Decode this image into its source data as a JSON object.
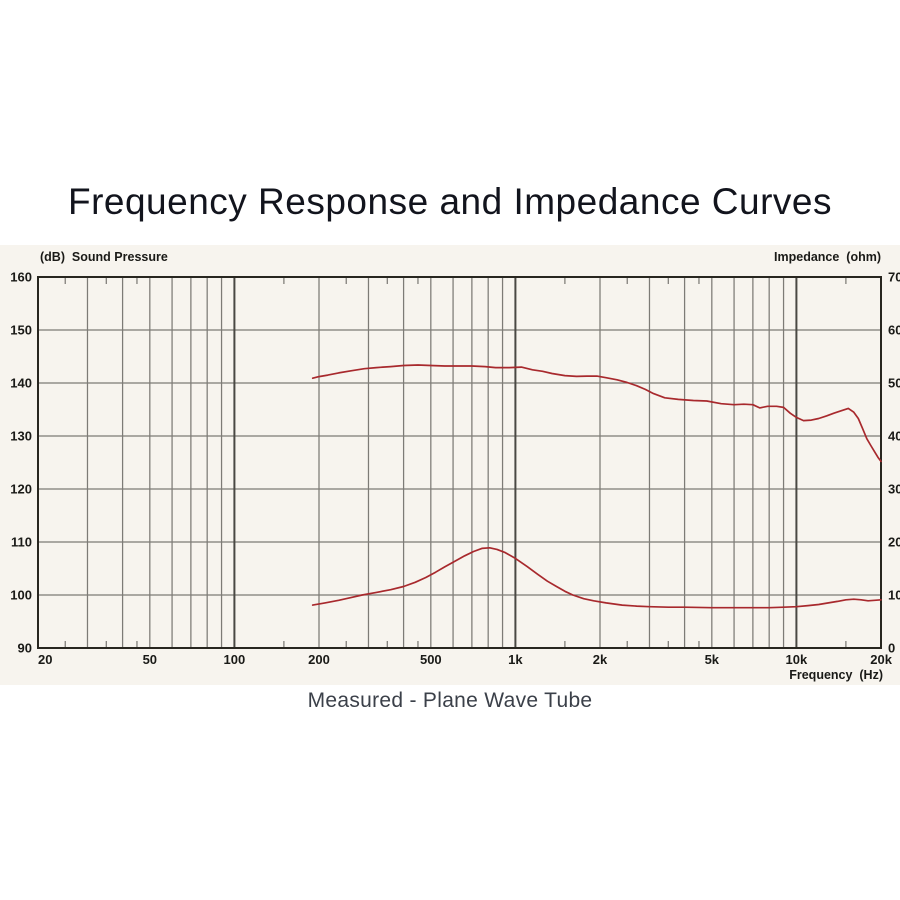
{
  "page": {
    "title": "Frequency Response and Impedance Curves",
    "caption": "Measured - Plane Wave Tube"
  },
  "chart_data": {
    "type": "line",
    "title": "Frequency Response and Impedance Curves",
    "subtitle": "Measured - Plane Wave Tube",
    "legend": "none",
    "grid": {
      "x_minor": [
        30,
        40,
        50,
        60,
        70,
        80,
        90,
        200,
        300,
        400,
        500,
        600,
        700,
        800,
        900,
        2000,
        3000,
        4000,
        5000,
        6000,
        7000,
        8000,
        9000
      ],
      "x_major": [
        100,
        1000,
        10000
      ],
      "x_edge_ticks": [
        25,
        35,
        45,
        150,
        250,
        350,
        450,
        1500,
        2500,
        3500,
        4500,
        15000
      ],
      "y_lines": [
        150,
        140,
        130,
        120,
        110,
        100
      ]
    },
    "x_axis": {
      "label": "Frequency  (Hz)",
      "scale": "log",
      "min": 20,
      "max": 20000,
      "ticks": [
        {
          "f": 20,
          "label": "20",
          "anchor": "start"
        },
        {
          "f": 50,
          "label": "50",
          "anchor": "middle"
        },
        {
          "f": 100,
          "label": "100",
          "anchor": "middle"
        },
        {
          "f": 200,
          "label": "200",
          "anchor": "middle"
        },
        {
          "f": 500,
          "label": "500",
          "anchor": "middle"
        },
        {
          "f": 1000,
          "label": "1k",
          "anchor": "middle"
        },
        {
          "f": 2000,
          "label": "2k",
          "anchor": "middle"
        },
        {
          "f": 5000,
          "label": "5k",
          "anchor": "middle"
        },
        {
          "f": 10000,
          "label": "10k",
          "anchor": "middle"
        },
        {
          "f": 20000,
          "label": "20k",
          "anchor": "end"
        }
      ]
    },
    "y_left": {
      "label": "(dB)  Sound Pressure",
      "min": 90,
      "max": 160,
      "step": 10,
      "ticks": [
        160,
        150,
        140,
        130,
        120,
        110,
        100,
        90
      ]
    },
    "y_right": {
      "label": "Impedance  (ohm)",
      "min": 0,
      "max": 70,
      "step": 10,
      "ticks": [
        70,
        60,
        50,
        40,
        30,
        20,
        10,
        0
      ]
    },
    "series": [
      {
        "name": "Sound Pressure",
        "unit": "dB",
        "axis": "left",
        "color": "#a8292d",
        "points": [
          [
            190,
            140.9
          ],
          [
            200,
            141.2
          ],
          [
            215,
            141.5
          ],
          [
            235,
            141.9
          ],
          [
            260,
            142.3
          ],
          [
            290,
            142.7
          ],
          [
            320,
            142.9
          ],
          [
            360,
            143.1
          ],
          [
            400,
            143.3
          ],
          [
            450,
            143.4
          ],
          [
            500,
            143.3
          ],
          [
            560,
            143.2
          ],
          [
            630,
            143.2
          ],
          [
            700,
            143.2
          ],
          [
            780,
            143.1
          ],
          [
            850,
            142.9
          ],
          [
            950,
            142.9
          ],
          [
            1050,
            143.0
          ],
          [
            1150,
            142.5
          ],
          [
            1250,
            142.2
          ],
          [
            1350,
            141.8
          ],
          [
            1500,
            141.4
          ],
          [
            1650,
            141.25
          ],
          [
            1800,
            141.3
          ],
          [
            1950,
            141.3
          ],
          [
            2100,
            141.0
          ],
          [
            2300,
            140.6
          ],
          [
            2500,
            140.1
          ],
          [
            2700,
            139.5
          ],
          [
            2900,
            138.8
          ],
          [
            3100,
            138.0
          ],
          [
            3400,
            137.2
          ],
          [
            3800,
            136.9
          ],
          [
            4300,
            136.7
          ],
          [
            4800,
            136.6
          ],
          [
            5400,
            136.1
          ],
          [
            6000,
            135.9
          ],
          [
            6500,
            136.0
          ],
          [
            7000,
            135.9
          ],
          [
            7400,
            135.3
          ],
          [
            7900,
            135.6
          ],
          [
            8500,
            135.6
          ],
          [
            9000,
            135.4
          ],
          [
            9500,
            134.3
          ],
          [
            10000,
            133.5
          ],
          [
            10600,
            132.9
          ],
          [
            11300,
            133.0
          ],
          [
            12000,
            133.3
          ],
          [
            12800,
            133.8
          ],
          [
            13600,
            134.3
          ],
          [
            14500,
            134.8
          ],
          [
            15300,
            135.2
          ],
          [
            16000,
            134.5
          ],
          [
            16600,
            133.3
          ],
          [
            17200,
            131.4
          ],
          [
            17800,
            129.5
          ],
          [
            18400,
            128.2
          ],
          [
            19000,
            127.0
          ],
          [
            19500,
            126.0
          ],
          [
            20000,
            125.2
          ]
        ]
      },
      {
        "name": "Impedance",
        "unit": "ohm",
        "axis": "right",
        "color": "#a8292d",
        "points": [
          [
            190,
            8.1
          ],
          [
            210,
            8.5
          ],
          [
            235,
            9.0
          ],
          [
            260,
            9.5
          ],
          [
            285,
            10.0
          ],
          [
            320,
            10.5
          ],
          [
            360,
            11.0
          ],
          [
            400,
            11.6
          ],
          [
            440,
            12.4
          ],
          [
            480,
            13.3
          ],
          [
            520,
            14.3
          ],
          [
            560,
            15.3
          ],
          [
            610,
            16.4
          ],
          [
            660,
            17.4
          ],
          [
            710,
            18.2
          ],
          [
            760,
            18.8
          ],
          [
            810,
            18.9
          ],
          [
            860,
            18.6
          ],
          [
            920,
            18.0
          ],
          [
            1000,
            16.9
          ],
          [
            1100,
            15.4
          ],
          [
            1200,
            13.9
          ],
          [
            1300,
            12.6
          ],
          [
            1400,
            11.6
          ],
          [
            1500,
            10.7
          ],
          [
            1600,
            10.0
          ],
          [
            1750,
            9.3
          ],
          [
            1900,
            8.9
          ],
          [
            2100,
            8.5
          ],
          [
            2400,
            8.1
          ],
          [
            2700,
            7.9
          ],
          [
            3000,
            7.8
          ],
          [
            3500,
            7.7
          ],
          [
            4000,
            7.7
          ],
          [
            5000,
            7.6
          ],
          [
            6000,
            7.6
          ],
          [
            7000,
            7.6
          ],
          [
            8000,
            7.6
          ],
          [
            9000,
            7.7
          ],
          [
            10000,
            7.8
          ],
          [
            11000,
            8.0
          ],
          [
            12000,
            8.2
          ],
          [
            13000,
            8.5
          ],
          [
            14000,
            8.8
          ],
          [
            15000,
            9.1
          ],
          [
            16000,
            9.2
          ],
          [
            17000,
            9.1
          ],
          [
            18000,
            8.9
          ],
          [
            19000,
            9.0
          ],
          [
            20000,
            9.1
          ]
        ]
      }
    ]
  },
  "colors": {
    "page_bg": "#ffffff",
    "panel_bg": "#f7f4ee",
    "curve": "#a8292d",
    "grid_minor": "#7d7b76",
    "grid_major": "#4a4843",
    "border": "#28261f",
    "title_text": "#12141d",
    "caption_text": "#3b4049",
    "axis_text": "#1a1a17"
  }
}
